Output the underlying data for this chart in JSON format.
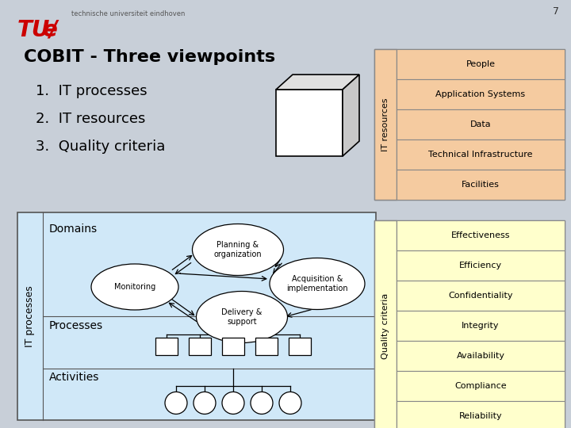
{
  "title": "COBIT - Three viewpoints",
  "points": [
    "1.  IT processes",
    "2.  IT resources",
    "3.  Quality criteria"
  ],
  "it_resources_label": "IT resources",
  "it_resources": [
    "People",
    "Application Systems",
    "Data",
    "Technical Infrastructure",
    "Facilities"
  ],
  "quality_criteria_label": "Quality criteria",
  "quality_criteria": [
    "Effectiveness",
    "Efficiency",
    "Confidentiality",
    "Integrity",
    "Availability",
    "Compliance",
    "Reliability"
  ],
  "it_processes_label": "IT processes",
  "domains_label": "Domains",
  "processes_label": "Processes",
  "activities_label": "Activities",
  "it_resources_cell_bg": "#f5cba0",
  "quality_criteria_cell_bg": "#ffffcc",
  "left_panel_bg": "#d0e8f8",
  "page_num": "7",
  "tu_e_color": "#cc0000",
  "slide_bg": "#c8cfd8",
  "header_line_color": "#aaaaaa",
  "table_label_bg_res": "#f5cba0",
  "table_label_bg_qc": "#ffffcc"
}
